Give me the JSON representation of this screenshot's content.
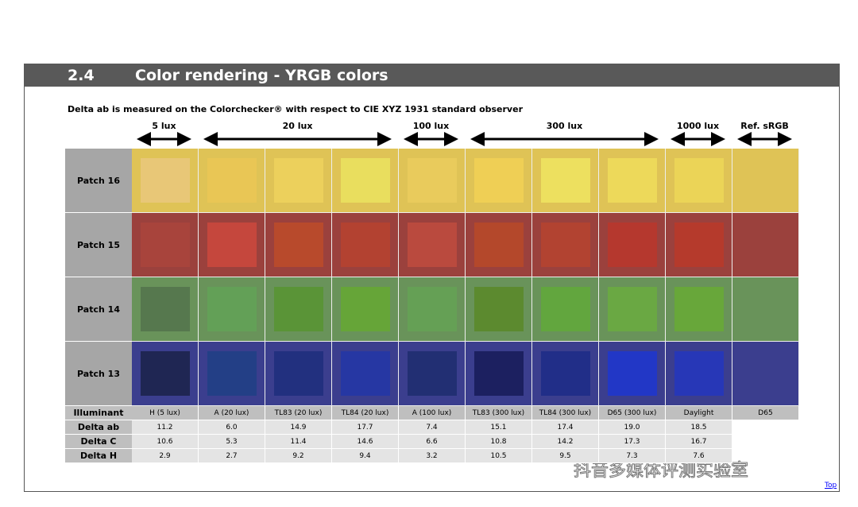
{
  "header": {
    "number": "2.4",
    "title": "Color rendering - YRGB colors"
  },
  "subtitle": "Delta ab is measured on the Colorchecker® with respect to CIE XYZ 1931 standard observer",
  "groups": [
    "5 lux",
    "20 lux",
    "100 lux",
    "300 lux",
    "1000 lux",
    "Ref. sRGB"
  ],
  "patches": [
    {
      "label": "Patch 16",
      "color": "#dfc356",
      "inner": [
        "#e8c777",
        "#e9c655",
        "#ecd05c",
        "#e9de5e",
        "#e9cb5c",
        "#efcf55",
        "#ede05f",
        "#edd95a",
        "#ebd457"
      ]
    },
    {
      "label": "Patch 15",
      "color": "#9b413d",
      "inner": [
        "#a8443c",
        "#c5473d",
        "#b84a2c",
        "#b34231",
        "#ba4a3e",
        "#b4482b",
        "#b24331",
        "#b5382e",
        "#b53a2c"
      ]
    },
    {
      "label": "Patch 14",
      "color": "#69935a",
      "inner": [
        "#56784e",
        "#63a057",
        "#5a9437",
        "#66a538",
        "#65a055",
        "#5c8a2f",
        "#62a63e",
        "#6aa843",
        "#68a73a"
      ]
    },
    {
      "label": "Patch 13",
      "color": "#3b3e8e",
      "inner": [
        "#1f2653",
        "#233f86",
        "#22307f",
        "#2637a3",
        "#222f73",
        "#1c2060",
        "#212e88",
        "#2237c6",
        "#2737b7"
      ]
    }
  ],
  "table": {
    "illuminant_label": "Illuminant",
    "illuminants": [
      "H (5 lux)",
      "A (20 lux)",
      "TL83 (20 lux)",
      "TL84 (20 lux)",
      "A (100 lux)",
      "TL83 (300 lux)",
      "TL84 (300 lux)",
      "D65 (300 lux)",
      "Daylight",
      "D65"
    ],
    "rows": [
      {
        "name": "Delta ab",
        "values": [
          "11.2",
          "6.0",
          "14.9",
          "17.7",
          "7.4",
          "15.1",
          "17.4",
          "19.0",
          "18.5"
        ]
      },
      {
        "name": "Delta C",
        "values": [
          "10.6",
          "5.3",
          "11.4",
          "14.6",
          "6.6",
          "10.8",
          "14.2",
          "17.3",
          "16.7"
        ]
      },
      {
        "name": "Delta H",
        "values": [
          "2.9",
          "2.7",
          "9.2",
          "9.4",
          "3.2",
          "10.5",
          "9.5",
          "7.3",
          "7.6"
        ]
      }
    ]
  },
  "watermark": "抖音多媒体评测实验室",
  "link": "Top"
}
